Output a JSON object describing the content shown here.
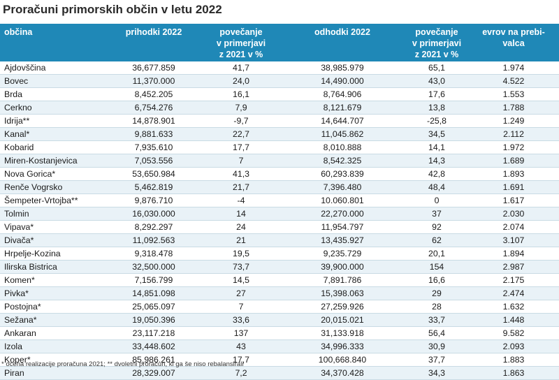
{
  "title": "Proračuni primorskih občin v letu 2022",
  "headers": [
    "občina",
    "prihodki 2022",
    "povečanje\nv primerjavi\nz 2021 v %",
    "odhodki 2022",
    "povečanje\nv primerjavi\nz 2021 v %",
    "evrov na prebi-\nvalca"
  ],
  "rows": [
    [
      "Ajdovščina",
      "36,677.859",
      "41,7",
      "38,985.979",
      "65,1",
      "1.974"
    ],
    [
      "Bovec",
      "11,370.000",
      "24,0",
      "14,490.000",
      "43,0",
      "4.522"
    ],
    [
      "Brda",
      "8,452.205",
      "16,1",
      "8,764.906",
      "17,6",
      "1.553"
    ],
    [
      "Cerkno",
      "6,754.276",
      "7,9",
      "8,121.679",
      "13,8",
      "1.788"
    ],
    [
      "Idrija**",
      "14,878.901",
      "-9,7",
      "14,644.707",
      "-25,8",
      "1.249"
    ],
    [
      "Kanal*",
      "9,881.633",
      "22,7",
      "11,045.862",
      "34,5",
      "2.112"
    ],
    [
      "Kobarid",
      "7,935.610",
      "17,7",
      "8,010.888",
      "14,1",
      "1.972"
    ],
    [
      "Miren-Kostanjevica",
      "7,053.556",
      "7",
      "8,542.325",
      "14,3",
      "1.689"
    ],
    [
      "Nova Gorica*",
      "53,650.984",
      "41,3",
      "60,293.839",
      "42,8",
      "1.893"
    ],
    [
      "Renče Vogrsko",
      "5,462.819",
      "21,7",
      "7,396.480",
      "48,4",
      "1.691"
    ],
    [
      "Šempeter-Vrtojba**",
      "9,876.710",
      "-4",
      "10.060.801",
      "0",
      "1.617"
    ],
    [
      "Tolmin",
      "16,030.000",
      "14",
      "22,270.000",
      "37",
      "2.030"
    ],
    [
      "Vipava*",
      "8,292.297",
      "24",
      "11,954.797",
      "92",
      "2.074"
    ],
    [
      "Divača*",
      "11,092.563",
      "21",
      "13,435.927",
      "62",
      "3.107"
    ],
    [
      "Hrpelje-Kozina",
      "9,318.478",
      "19,5",
      "9,235.729",
      "20,1",
      "1.894"
    ],
    [
      "Ilirska Bistrica",
      "32,500.000",
      "73,7",
      "39,900.000",
      "154",
      "2.987"
    ],
    [
      "Komen*",
      "7,156.799",
      "14,5",
      "7,891.786",
      "16,6",
      "2.175"
    ],
    [
      "Pivka*",
      "14,851.098",
      "27",
      "15,398.063",
      "29",
      "2.474"
    ],
    [
      "Postojna*",
      "25,065.097",
      "7",
      "27,259.926",
      "28",
      "1.632"
    ],
    [
      "Sežana*",
      "19,050.396",
      "33,6",
      "20,015.021",
      "33,7",
      "1.448"
    ],
    [
      "Ankaran",
      "23,117.218",
      "137",
      "31,133.918",
      "56,4",
      "9.582"
    ],
    [
      "Izola",
      "33,448.602",
      "43",
      "34,996.333",
      "30,9",
      "2.093"
    ],
    [
      "Koper*",
      "85,986.261",
      "17,7",
      "100,668.840",
      "37,7",
      "1.883"
    ],
    [
      "Piran",
      "28,329.007",
      "7,2",
      "34,370.428",
      "34,3",
      "1.863"
    ]
  ],
  "footnote": "* ocena realizacije proračuna 2021; ** dvoletni proračun, ki ga še niso rebalansirali",
  "colors": {
    "header_bg": "#1f88b7",
    "stripe": "#e9f2f7"
  }
}
